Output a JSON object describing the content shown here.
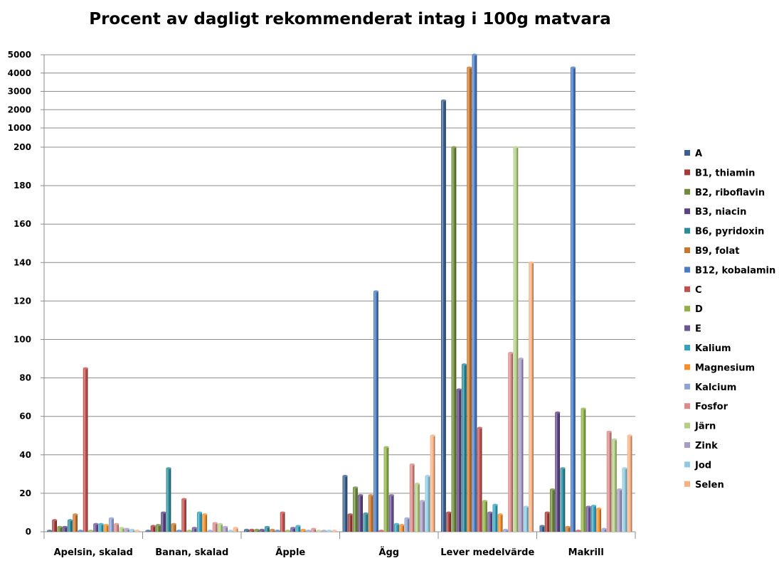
{
  "chart_data": {
    "type": "bar",
    "title": "Procent av dagligt rekommenderat intag i 100g matvara",
    "xlabel": "",
    "ylabel": "",
    "categories": [
      "Apelsin, skalad",
      "Banan, skalad",
      "Äpple",
      "Ägg",
      "Lever medelvärde",
      "Makrill"
    ],
    "y_ticks_linear": [
      "0",
      "20",
      "40",
      "60",
      "80",
      "100",
      "120",
      "140",
      "160",
      "180",
      "200"
    ],
    "y_ticks_upper": [
      "1000",
      "2000",
      "3000",
      "4000",
      "5000"
    ],
    "ylim": [
      0,
      5000
    ],
    "axis_note": "broken axis: linear 0-200, then 1000-5000",
    "legend_position": "right",
    "grid": true,
    "series": [
      {
        "name": "A",
        "color": "#3b5f8f",
        "values": [
          0.5,
          0.5,
          1,
          29,
          2500,
          3
        ]
      },
      {
        "name": "B1, thiamin",
        "color": "#a33b38",
        "values": [
          6,
          3,
          1,
          9,
          10,
          10
        ]
      },
      {
        "name": "B2, riboflavin",
        "color": "#6f8a3a",
        "values": [
          2.5,
          3.5,
          1,
          23,
          200,
          22
        ]
      },
      {
        "name": "B3, niacin",
        "color": "#5a4380",
        "values": [
          2.5,
          10,
          1,
          19,
          74,
          62
        ]
      },
      {
        "name": "B6, pyridoxin",
        "color": "#2c8a99",
        "values": [
          6,
          33,
          2.5,
          9.5,
          87,
          33
        ]
      },
      {
        "name": "B9, folat",
        "color": "#c8772f",
        "values": [
          9,
          4,
          1,
          19,
          4300,
          2.5
        ]
      },
      {
        "name": "B12, kobalamin",
        "color": "#4a7ac0",
        "values": [
          0.5,
          0.5,
          0.5,
          125,
          5000,
          4300
        ]
      },
      {
        "name": "C",
        "color": "#c0504d",
        "values": [
          85,
          17,
          10,
          0.5,
          54,
          0.5
        ]
      },
      {
        "name": "D",
        "color": "#8fb04a",
        "values": [
          0.5,
          0.5,
          0.5,
          44,
          16,
          64
        ]
      },
      {
        "name": "E",
        "color": "#6b5595",
        "values": [
          4,
          2,
          2,
          19,
          10,
          13
        ]
      },
      {
        "name": "Kalium",
        "color": "#34a3bd",
        "values": [
          4,
          10,
          3,
          4,
          14,
          13.5
        ]
      },
      {
        "name": "Magnesium",
        "color": "#f28e2b",
        "values": [
          3.5,
          9,
          1,
          3.5,
          9,
          12
        ]
      },
      {
        "name": "Kalcium",
        "color": "#8ea3d1",
        "values": [
          7,
          0.5,
          0.5,
          7,
          1,
          1.5
        ]
      },
      {
        "name": "Fosfor",
        "color": "#d98c8a",
        "values": [
          4,
          4.5,
          1.5,
          35,
          93,
          52
        ]
      },
      {
        "name": "Järn",
        "color": "#b4cf85",
        "values": [
          2,
          4,
          0.5,
          25,
          200,
          48
        ]
      },
      {
        "name": "Zink",
        "color": "#a99ac6",
        "values": [
          1.5,
          2.5,
          0.5,
          16,
          90,
          22
        ]
      },
      {
        "name": "Jod",
        "color": "#8fcbe0",
        "values": [
          1,
          0.5,
          0.5,
          29,
          13,
          33
        ]
      },
      {
        "name": "Selen",
        "color": "#f8b183",
        "values": [
          0.5,
          2,
          0.5,
          50,
          140,
          50
        ]
      }
    ]
  }
}
